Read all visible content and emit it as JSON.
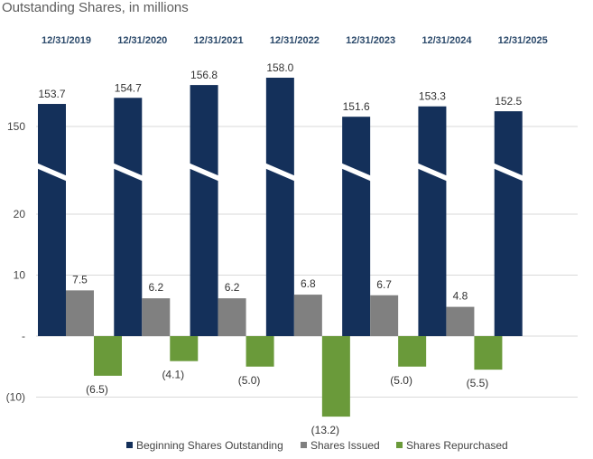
{
  "chart_data": {
    "type": "bar",
    "title": "Outstanding Shares, in millions",
    "categories": [
      "12/31/2019",
      "12/31/2020",
      "12/31/2021",
      "12/31/2022",
      "12/31/2023",
      "12/31/2024",
      "12/31/2025"
    ],
    "series": [
      {
        "name": "Beginning Shares Outstanding",
        "color": "#14305a",
        "values": [
          153.7,
          154.7,
          156.8,
          158.0,
          151.6,
          153.3,
          152.5
        ],
        "labels": [
          "153.7",
          "154.7",
          "156.8",
          "158.0",
          "151.6",
          "153.3",
          "152.5"
        ]
      },
      {
        "name": "Shares Issued",
        "color": "#808080",
        "values": [
          7.5,
          6.2,
          6.2,
          6.8,
          6.7,
          4.8,
          null
        ],
        "labels": [
          "7.5",
          "6.2",
          "6.2",
          "6.8",
          "6.7",
          "4.8",
          ""
        ]
      },
      {
        "name": "Shares Repurchased",
        "color": "#6a9a3a",
        "values": [
          -6.5,
          -4.1,
          -5.0,
          -13.2,
          -5.0,
          -5.5,
          null
        ],
        "labels": [
          "(6.5)",
          "(4.1)",
          "(5.0)",
          "(13.2)",
          "(5.0)",
          "(5.5)",
          ""
        ]
      }
    ],
    "y_axis": {
      "ticks": [
        {
          "value": -10,
          "label": "(10)"
        },
        {
          "value": 0,
          "label": "-"
        },
        {
          "value": 10,
          "label": "10"
        },
        {
          "value": 20,
          "label": "20"
        },
        {
          "value": 150,
          "label": "150"
        }
      ],
      "broken": true,
      "upper_segment": [
        150,
        160
      ]
    },
    "grid": true,
    "legend_position": "bottom"
  }
}
